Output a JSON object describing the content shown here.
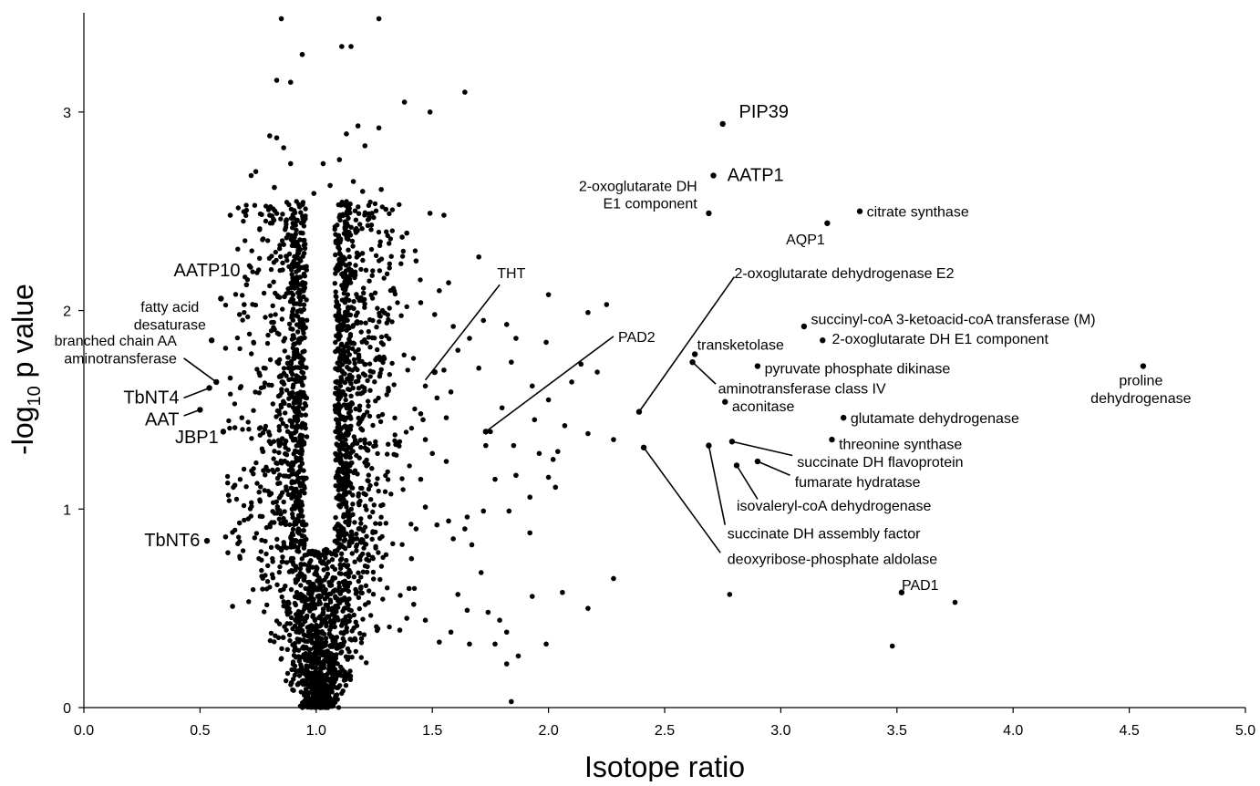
{
  "chart_data": {
    "type": "scatter",
    "title": "",
    "xlabel": "Isotope ratio",
    "ylabel": "-log10 p value",
    "ylabel_parts": {
      "pre": "-log",
      "sub": "10",
      "post": " p value"
    },
    "xlim": [
      0.0,
      5.0
    ],
    "ylim": [
      0,
      3.5
    ],
    "x_ticks": [
      {
        "value": 0.0,
        "label": "0.0"
      },
      {
        "value": 0.5,
        "label": "0.5"
      },
      {
        "value": 1.0,
        "label": "1.0"
      },
      {
        "value": 1.5,
        "label": "1.5"
      },
      {
        "value": 2.0,
        "label": "2.0"
      },
      {
        "value": 2.5,
        "label": "2.5"
      },
      {
        "value": 3.0,
        "label": "3.0"
      },
      {
        "value": 3.5,
        "label": "3.5"
      },
      {
        "value": 4.0,
        "label": "4.0"
      },
      {
        "value": 4.5,
        "label": "4.5"
      },
      {
        "value": 5.0,
        "label": "5.0"
      }
    ],
    "y_ticks": [
      {
        "value": 0,
        "label": "0"
      },
      {
        "value": 1,
        "label": "1"
      },
      {
        "value": 2,
        "label": "2"
      },
      {
        "value": 3,
        "label": "3"
      }
    ],
    "grid": false,
    "legend": "none",
    "marker_color": "#000000",
    "annotated_points": [
      {
        "label": "PIP39",
        "x": 2.75,
        "y": 2.94,
        "size": "big",
        "lx": 2.82,
        "ly": 3.0,
        "anchor": "start"
      },
      {
        "label": "AATP1",
        "x": 2.71,
        "y": 2.68,
        "size": "big",
        "lx": 2.77,
        "ly": 2.68,
        "anchor": "start"
      },
      {
        "label": "2-oxoglutarate DH\nE1 component",
        "x": 2.69,
        "y": 2.49,
        "size": "normal",
        "lx": 2.64,
        "ly": 2.59,
        "anchor": "end"
      },
      {
        "label": "citrate synthase",
        "x": 3.34,
        "y": 2.5,
        "size": "normal",
        "lx": 3.37,
        "ly": 2.5,
        "anchor": "start"
      },
      {
        "label": "AQP1",
        "x": 3.2,
        "y": 2.44,
        "size": "normal",
        "lx": 3.19,
        "ly": 2.36,
        "anchor": "end"
      },
      {
        "label": "2-oxoglutarate dehydrogenase E2",
        "x": 2.39,
        "y": 1.49,
        "size": "normal",
        "lx": 2.8,
        "ly": 2.19,
        "anchor": "start",
        "lineTo": [
          2.8,
          2.17
        ]
      },
      {
        "label": "THT",
        "x": 1.51,
        "y": 1.69,
        "size": "normal",
        "lx": 1.84,
        "ly": 2.19,
        "anchor": "middle",
        "lineTo": [
          1.79,
          2.13
        ],
        "lineFrom": [
          1.47,
          1.65
        ]
      },
      {
        "label": "PAD2",
        "x": 1.73,
        "y": 1.39,
        "size": "normal",
        "lx": 2.3,
        "ly": 1.87,
        "anchor": "start",
        "lineTo": [
          2.28,
          1.87
        ]
      },
      {
        "label": "succinyl-coA 3-ketoacid-coA transferase (M)",
        "x": 3.1,
        "y": 1.92,
        "size": "normal",
        "lx": 3.13,
        "ly": 1.96,
        "anchor": "start"
      },
      {
        "label": "2-oxoglutarate DH E1 component",
        "x": 3.18,
        "y": 1.85,
        "size": "normal",
        "lx": 3.22,
        "ly": 1.86,
        "anchor": "start"
      },
      {
        "label": "transketolase",
        "x": 2.63,
        "y": 1.78,
        "size": "normal",
        "lx": 2.64,
        "ly": 1.83,
        "anchor": "start"
      },
      {
        "label": "pyruvate phosphate dikinase",
        "x": 2.9,
        "y": 1.72,
        "size": "normal",
        "lx": 2.93,
        "ly": 1.71,
        "anchor": "start"
      },
      {
        "label": "aminotransferase class IV",
        "x": 2.62,
        "y": 1.74,
        "size": "normal",
        "lx": 2.73,
        "ly": 1.61,
        "anchor": "start",
        "lineTo": [
          2.72,
          1.63
        ]
      },
      {
        "label": "aconitase",
        "x": 2.76,
        "y": 1.54,
        "size": "normal",
        "lx": 2.79,
        "ly": 1.52,
        "anchor": "start"
      },
      {
        "label": "proline\ndehydrogenase",
        "x": 4.56,
        "y": 1.72,
        "size": "normal",
        "lx": 4.55,
        "ly": 1.61,
        "anchor": "middle"
      },
      {
        "label": "glutamate dehydrogenase",
        "x": 3.27,
        "y": 1.46,
        "size": "normal",
        "lx": 3.3,
        "ly": 1.46,
        "anchor": "start"
      },
      {
        "label": "threonine synthase",
        "x": 3.22,
        "y": 1.35,
        "size": "normal",
        "lx": 3.25,
        "ly": 1.33,
        "anchor": "start"
      },
      {
        "label": "succinate DH flavoprotein",
        "x": 2.79,
        "y": 1.34,
        "size": "normal",
        "lx": 3.07,
        "ly": 1.24,
        "anchor": "start",
        "lineTo": [
          3.05,
          1.27
        ]
      },
      {
        "label": "fumarate hydratase",
        "x": 2.9,
        "y": 1.24,
        "size": "normal",
        "lx": 3.06,
        "ly": 1.14,
        "anchor": "start",
        "lineTo": [
          3.04,
          1.17
        ]
      },
      {
        "label": "isovaleryl-coA dehydrogenase",
        "x": 2.81,
        "y": 1.22,
        "size": "normal",
        "lx": 2.81,
        "ly": 1.02,
        "anchor": "start",
        "lineTo": [
          2.9,
          1.05
        ]
      },
      {
        "label": "succinate DH assembly factor",
        "x": 2.69,
        "y": 1.32,
        "size": "normal",
        "lx": 2.77,
        "ly": 0.88,
        "anchor": "start",
        "lineTo": [
          2.76,
          0.92
        ]
      },
      {
        "label": "deoxyribose-phosphate aldolase",
        "x": 2.41,
        "y": 1.31,
        "size": "normal",
        "lx": 2.77,
        "ly": 0.75,
        "anchor": "start",
        "lineTo": [
          2.74,
          0.78
        ]
      },
      {
        "label": "PAD1",
        "x": 3.52,
        "y": 0.58,
        "size": "normal",
        "lx": 3.6,
        "ly": 0.62,
        "anchor": "middle"
      },
      {
        "label": "AATP10",
        "x": 0.59,
        "y": 2.06,
        "size": "big",
        "lx": 0.53,
        "ly": 2.2,
        "anchor": "middle"
      },
      {
        "label": "fatty acid\ndesaturase",
        "x": 0.55,
        "y": 1.85,
        "size": "normal",
        "lx": 0.37,
        "ly": 1.98,
        "anchor": "middle"
      },
      {
        "label": "branched chain AA\naminotransferase",
        "x": 0.57,
        "y": 1.64,
        "size": "normal",
        "lx": 0.4,
        "ly": 1.81,
        "anchor": "end",
        "lineTo": [
          0.43,
          1.76
        ]
      },
      {
        "label": "TbNT4",
        "x": 0.54,
        "y": 1.61,
        "size": "big",
        "lx": 0.41,
        "ly": 1.56,
        "anchor": "end",
        "lineTo": [
          0.43,
          1.56
        ]
      },
      {
        "label": "AAT",
        "x": 0.5,
        "y": 1.5,
        "size": "big",
        "lx": 0.41,
        "ly": 1.45,
        "anchor": "end",
        "lineTo": [
          0.43,
          1.47
        ]
      },
      {
        "label": "JBP1",
        "x": 0.6,
        "y": 1.39,
        "size": "big",
        "lx": 0.58,
        "ly": 1.36,
        "anchor": "end"
      },
      {
        "label": "TbNT6",
        "x": 0.53,
        "y": 0.84,
        "size": "big",
        "lx": 0.5,
        "ly": 0.84,
        "anchor": "end"
      }
    ],
    "scattered_points": [
      [
        0.85,
        3.47
      ],
      [
        1.27,
        3.47
      ],
      [
        1.11,
        3.33
      ],
      [
        1.15,
        3.33
      ],
      [
        0.94,
        3.29
      ],
      [
        1.64,
        3.1
      ],
      [
        0.83,
        3.16
      ],
      [
        0.89,
        3.15
      ],
      [
        1.38,
        3.05
      ],
      [
        1.49,
        3.0
      ],
      [
        1.18,
        2.93
      ],
      [
        1.27,
        2.92
      ],
      [
        1.13,
        2.89
      ],
      [
        0.8,
        2.88
      ],
      [
        0.83,
        2.87
      ],
      [
        1.21,
        2.83
      ],
      [
        0.86,
        2.82
      ],
      [
        0.74,
        2.7
      ],
      [
        0.72,
        2.68
      ],
      [
        0.89,
        2.74
      ],
      [
        1.03,
        2.74
      ],
      [
        1.1,
        2.76
      ],
      [
        0.99,
        2.59
      ],
      [
        1.16,
        2.65
      ],
      [
        1.06,
        2.63
      ],
      [
        0.82,
        2.62
      ],
      [
        1.2,
        2.6
      ],
      [
        1.28,
        2.61
      ],
      [
        0.63,
        2.48
      ],
      [
        0.8,
        2.48
      ],
      [
        0.87,
        2.45
      ],
      [
        0.9,
        2.44
      ],
      [
        1.1,
        2.47
      ],
      [
        1.24,
        2.49
      ],
      [
        1.3,
        2.51
      ],
      [
        1.49,
        2.49
      ],
      [
        1.55,
        2.48
      ],
      [
        1.37,
        2.37
      ],
      [
        1.39,
        2.39
      ],
      [
        1.43,
        2.25
      ],
      [
        1.7,
        2.27
      ],
      [
        1.57,
        2.14
      ],
      [
        1.53,
        2.1
      ],
      [
        1.45,
        2.04
      ],
      [
        1.51,
        1.98
      ],
      [
        1.72,
        1.95
      ],
      [
        1.59,
        1.92
      ],
      [
        1.66,
        1.86
      ],
      [
        1.61,
        1.8
      ],
      [
        1.7,
        1.71
      ],
      [
        1.82,
        1.93
      ],
      [
        1.86,
        1.86
      ],
      [
        2.0,
        2.08
      ],
      [
        1.99,
        1.84
      ],
      [
        2.17,
        1.99
      ],
      [
        2.25,
        2.03
      ],
      [
        1.84,
        1.74
      ],
      [
        2.14,
        1.73
      ],
      [
        2.1,
        1.64
      ],
      [
        2.0,
        1.55
      ],
      [
        2.21,
        1.69
      ],
      [
        1.93,
        1.62
      ],
      [
        1.8,
        1.51
      ],
      [
        1.94,
        1.45
      ],
      [
        1.75,
        1.39
      ],
      [
        2.07,
        1.42
      ],
      [
        2.17,
        1.38
      ],
      [
        2.28,
        1.35
      ],
      [
        1.85,
        1.32
      ],
      [
        1.96,
        1.28
      ],
      [
        2.04,
        1.29
      ],
      [
        2.02,
        1.25
      ],
      [
        1.73,
        1.32
      ],
      [
        1.77,
        1.15
      ],
      [
        1.86,
        1.17
      ],
      [
        2.0,
        1.16
      ],
      [
        2.03,
        1.11
      ],
      [
        1.92,
        1.06
      ],
      [
        1.83,
        0.99
      ],
      [
        1.72,
        0.99
      ],
      [
        1.65,
        0.96
      ],
      [
        1.57,
        0.94
      ],
      [
        1.52,
        0.92
      ],
      [
        1.64,
        0.9
      ],
      [
        1.59,
        0.85
      ],
      [
        1.67,
        0.82
      ],
      [
        1.92,
        0.88
      ],
      [
        1.71,
        0.68
      ],
      [
        1.61,
        0.57
      ],
      [
        2.06,
        0.58
      ],
      [
        1.93,
        0.56
      ],
      [
        2.17,
        0.5
      ],
      [
        1.65,
        0.49
      ],
      [
        1.74,
        0.48
      ],
      [
        1.79,
        0.44
      ],
      [
        1.82,
        0.38
      ],
      [
        1.58,
        0.38
      ],
      [
        1.53,
        0.33
      ],
      [
        1.66,
        0.32
      ],
      [
        1.77,
        0.32
      ],
      [
        1.99,
        0.32
      ],
      [
        1.87,
        0.26
      ],
      [
        1.82,
        0.22
      ],
      [
        1.84,
        0.03
      ],
      [
        2.28,
        0.65
      ],
      [
        2.78,
        0.57
      ],
      [
        3.48,
        0.31
      ],
      [
        3.75,
        0.53
      ],
      [
        0.64,
        0.51
      ],
      [
        0.62,
        0.78
      ],
      [
        0.61,
        0.86
      ],
      [
        0.67,
        0.93
      ],
      [
        0.65,
        1.12
      ],
      [
        0.65,
        1.41
      ],
      [
        0.68,
        1.46
      ],
      [
        0.63,
        1.66
      ],
      [
        0.61,
        1.81
      ],
      [
        0.67,
        1.98
      ],
      [
        0.69,
        2.03
      ],
      [
        0.7,
        2.13
      ],
      [
        1.45,
        1.48
      ],
      [
        1.46,
        1.45
      ],
      [
        1.47,
        1.35
      ],
      [
        1.47,
        1.62
      ],
      [
        1.52,
        1.56
      ],
      [
        1.58,
        1.59
      ],
      [
        1.56,
        1.46
      ],
      [
        1.55,
        1.7
      ],
      [
        1.5,
        1.28
      ],
      [
        1.56,
        1.24
      ],
      [
        1.45,
        1.15
      ],
      [
        1.47,
        1.01
      ],
      [
        1.43,
        0.9
      ],
      [
        1.41,
        0.75
      ],
      [
        1.4,
        0.6
      ],
      [
        1.39,
        0.45
      ],
      [
        1.36,
        0.39
      ],
      [
        1.47,
        0.44
      ],
      [
        1.42,
        0.52
      ]
    ],
    "cloud": {
      "seed": 7,
      "count": 2600,
      "center_x": 1.02,
      "note_only_script": false
    }
  }
}
